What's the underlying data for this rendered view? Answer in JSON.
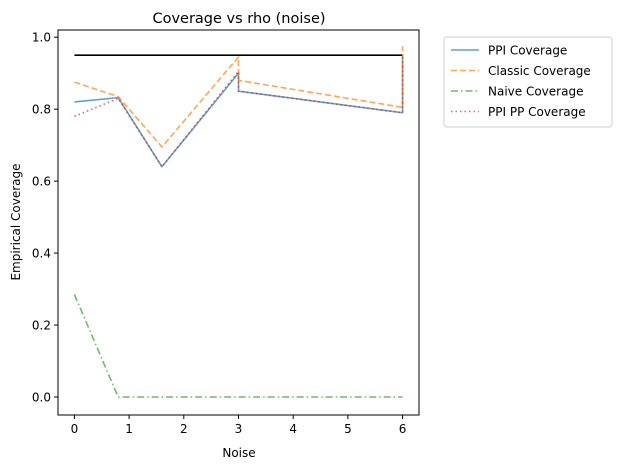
{
  "chart_data": {
    "type": "line",
    "title": "Coverage vs rho (noise)",
    "xlabel": "Noise",
    "ylabel": "Empirical Coverage",
    "xlim": [
      -0.3,
      6.3
    ],
    "ylim": [
      -0.05,
      1.02
    ],
    "xticks": [
      0,
      1,
      2,
      3,
      4,
      5,
      6
    ],
    "yticks": [
      0.0,
      0.2,
      0.4,
      0.6,
      0.8,
      1.0
    ],
    "xtick_labels": [
      "0",
      "1",
      "2",
      "3",
      "4",
      "5",
      "6"
    ],
    "ytick_labels": [
      "0.0",
      "0.2",
      "0.4",
      "0.6",
      "0.8",
      "1.0"
    ],
    "grid": false,
    "legend_placement": "outside-top-right",
    "reference_line": {
      "y": 0.95,
      "x_range": [
        0,
        6
      ],
      "color": "#000000"
    },
    "series": [
      {
        "name": "PPI Coverage",
        "color": "#1f77b4",
        "dash": "solid",
        "x": [
          0,
          0.8,
          1.6,
          3,
          3,
          6,
          6
        ],
        "y": [
          0.82,
          0.832,
          0.64,
          0.9,
          0.85,
          0.79,
          0.95
        ]
      },
      {
        "name": "Classic Coverage",
        "color": "#ff7f0e",
        "dash": "dashed",
        "x": [
          0,
          0.8,
          1.6,
          3,
          3,
          6,
          6
        ],
        "y": [
          0.875,
          0.835,
          0.695,
          0.945,
          0.88,
          0.805,
          0.975
        ]
      },
      {
        "name": "Naive Coverage",
        "color": "#2ca02c",
        "dash": "dashdot",
        "x": [
          0,
          0.8,
          1.6,
          3,
          6
        ],
        "y": [
          0.285,
          0.0,
          0.0,
          0.0,
          0.0
        ]
      },
      {
        "name": "PPI PP Coverage",
        "color": "#d62728",
        "dash": "dotted",
        "x": [
          0,
          0.8,
          1.6,
          3,
          3,
          6,
          6
        ],
        "y": [
          0.78,
          0.83,
          0.64,
          0.905,
          0.85,
          0.79,
          0.95
        ]
      }
    ]
  }
}
